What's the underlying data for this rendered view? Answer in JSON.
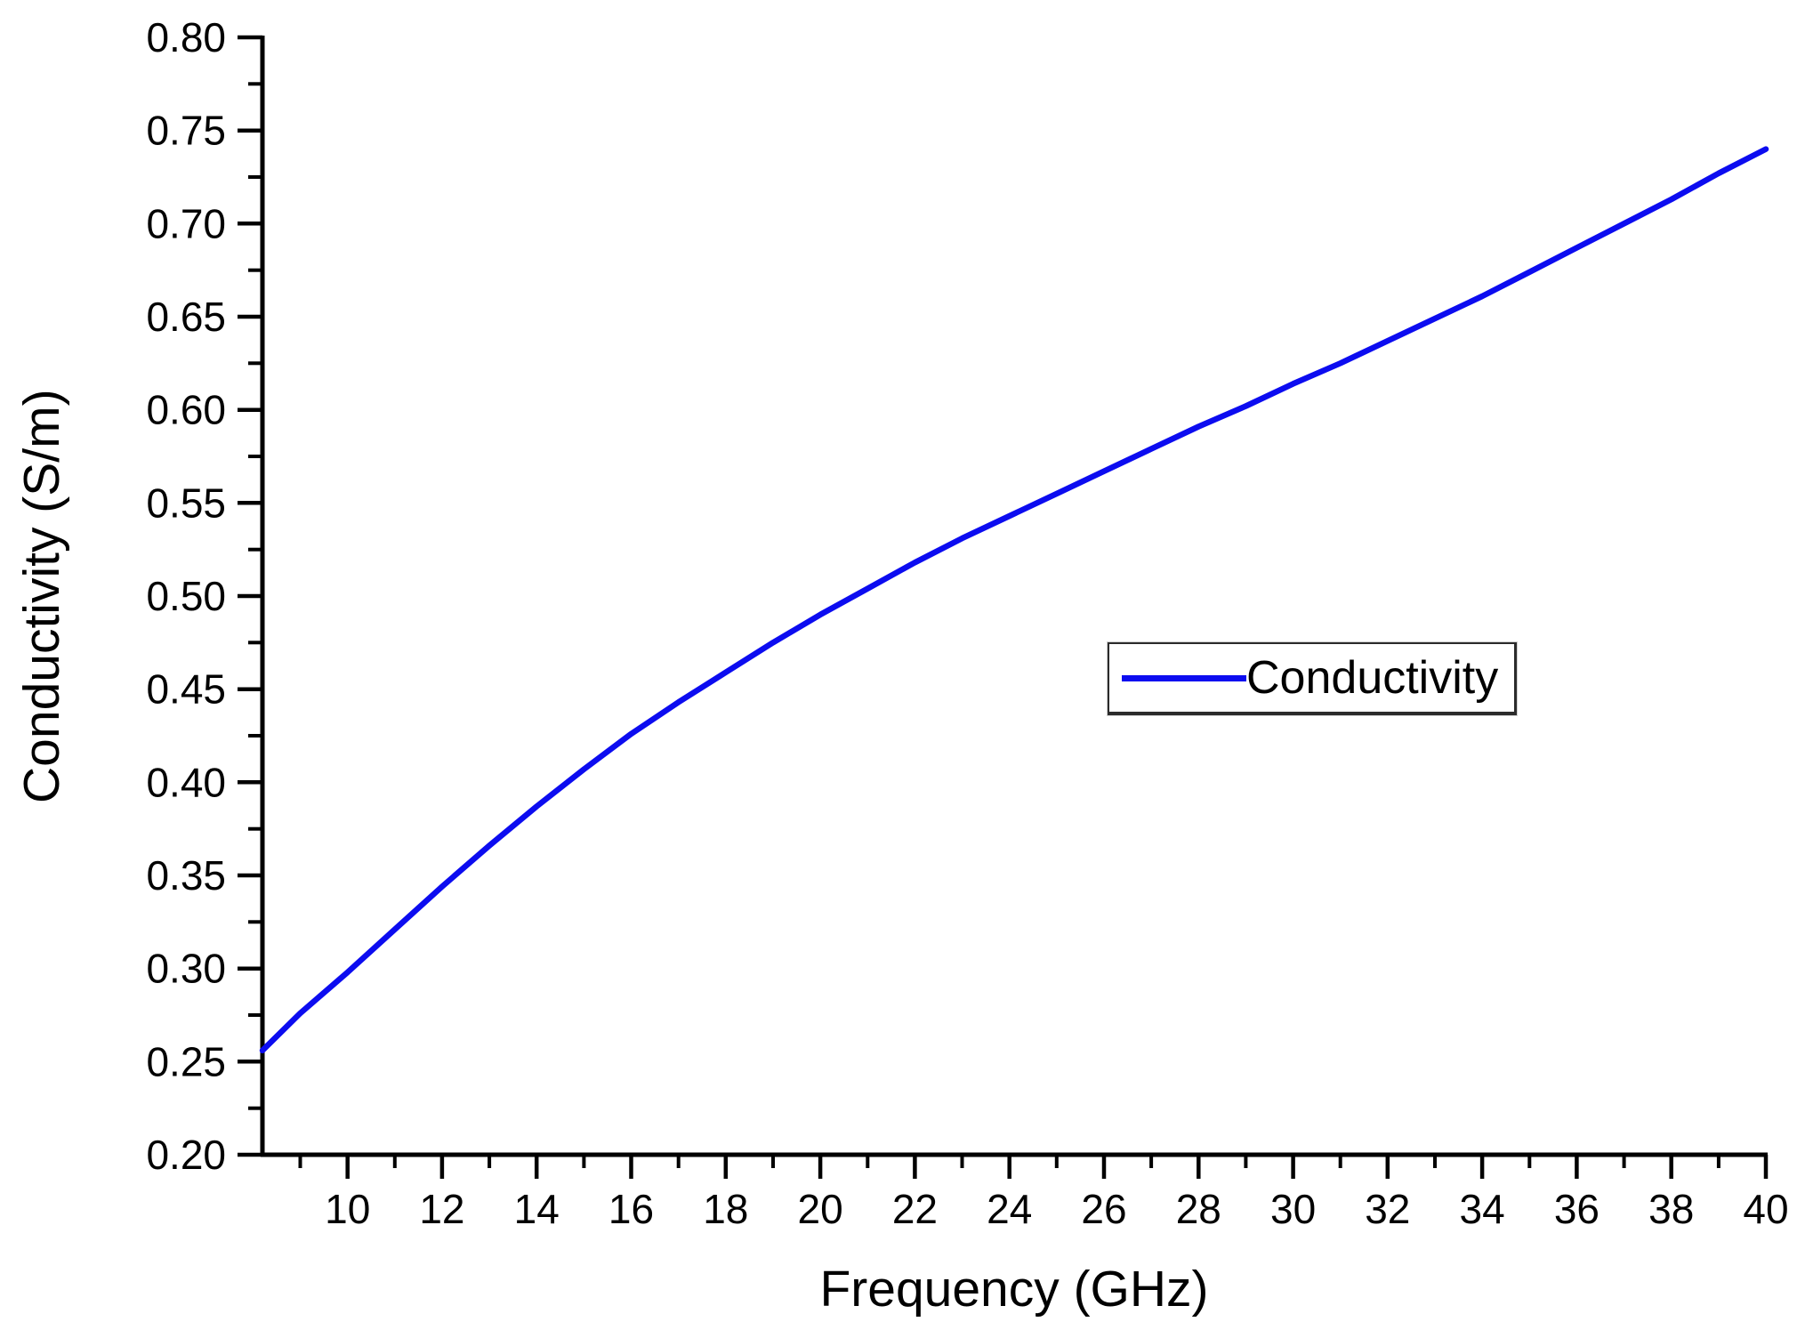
{
  "figure": {
    "background": "#ffffff"
  },
  "chart_data": {
    "type": "line",
    "title": "",
    "xlabel": "Frequency (GHz)",
    "ylabel": "Conductivity (S/m)",
    "xlim": [
      8.2,
      40
    ],
    "ylim": [
      0.2,
      0.8
    ],
    "grid": false,
    "x_major_ticks": {
      "values": [
        10,
        12,
        14,
        16,
        18,
        20,
        22,
        24,
        26,
        28,
        30,
        32,
        34,
        36,
        38,
        40
      ],
      "labels": [
        "10",
        "12",
        "14",
        "16",
        "18",
        "20",
        "22",
        "24",
        "26",
        "28",
        "30",
        "32",
        "34",
        "36",
        "38",
        "40"
      ]
    },
    "x_minor_ticks": [
      9,
      11,
      13,
      15,
      17,
      19,
      21,
      23,
      25,
      27,
      29,
      31,
      33,
      35,
      37,
      39
    ],
    "y_major_ticks": {
      "values": [
        0.2,
        0.25,
        0.3,
        0.35,
        0.4,
        0.45,
        0.5,
        0.55,
        0.6,
        0.65,
        0.7,
        0.75,
        0.8
      ],
      "labels": [
        "0.20",
        "0.25",
        "0.30",
        "0.35",
        "0.40",
        "0.45",
        "0.50",
        "0.55",
        "0.60",
        "0.65",
        "0.70",
        "0.75",
        "0.80"
      ]
    },
    "y_minor_ticks": [
      0.225,
      0.275,
      0.325,
      0.375,
      0.425,
      0.475,
      0.525,
      0.575,
      0.625,
      0.675,
      0.725,
      0.775
    ],
    "legend": {
      "position": "center-right",
      "entries": [
        "Conductivity"
      ]
    },
    "colors": {
      "line": "#0c0cf0",
      "axis": "#000000",
      "text": "#000000",
      "background": "#ffffff"
    },
    "series": [
      {
        "name": "Conductivity",
        "color": "#0c0cf0",
        "points": [
          [
            8.2,
            0.256
          ],
          [
            9,
            0.276
          ],
          [
            10,
            0.298
          ],
          [
            11,
            0.321
          ],
          [
            12,
            0.344
          ],
          [
            13,
            0.366
          ],
          [
            14,
            0.387
          ],
          [
            15,
            0.407
          ],
          [
            16,
            0.426
          ],
          [
            17,
            0.443
          ],
          [
            18,
            0.459
          ],
          [
            19,
            0.475
          ],
          [
            20,
            0.49
          ],
          [
            21,
            0.504
          ],
          [
            22,
            0.518
          ],
          [
            23,
            0.531
          ],
          [
            24,
            0.543
          ],
          [
            25,
            0.555
          ],
          [
            26,
            0.567
          ],
          [
            27,
            0.579
          ],
          [
            28,
            0.591
          ],
          [
            29,
            0.602
          ],
          [
            30,
            0.614
          ],
          [
            31,
            0.625
          ],
          [
            32,
            0.637
          ],
          [
            33,
            0.649
          ],
          [
            34,
            0.661
          ],
          [
            35,
            0.674
          ],
          [
            36,
            0.687
          ],
          [
            37,
            0.7
          ],
          [
            38,
            0.713
          ],
          [
            39,
            0.727
          ],
          [
            40,
            0.74
          ]
        ]
      }
    ]
  }
}
